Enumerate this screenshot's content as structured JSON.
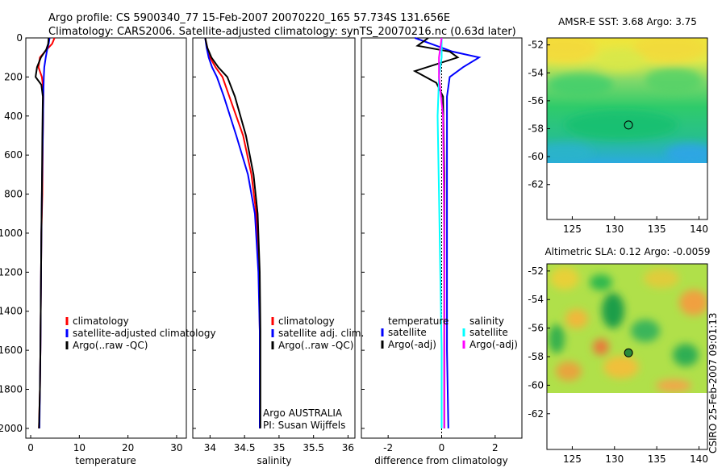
{
  "title_line1": "Argo profile: CS 5900340_77 15-Feb-2007 20070220_165 57.734S 131.656E",
  "title_line2": "Climatology: CARS2006. Satellite-adjusted climatology: synTS_20070216.nc (0.63d later)",
  "watermark": "CSIRO 25-Feb-2007 09:01:13",
  "colors": {
    "red": "#ff0000",
    "blue": "#0000ff",
    "black": "#000000",
    "cyan": "#00ffff",
    "magenta": "#ff00ff"
  },
  "chart_data": [
    {
      "type": "line",
      "name": "temperature",
      "xlabel": "temperature",
      "xlim": [
        -1,
        32
      ],
      "ylim": [
        2050,
        0
      ],
      "xticks": [
        0,
        10,
        20,
        30
      ],
      "yticks": [
        0,
        200,
        400,
        600,
        800,
        1000,
        1200,
        1400,
        1600,
        1800,
        2000
      ],
      "legend": [
        "climatology",
        "satellite-adjusted climatology",
        "Argo(..raw -QC)"
      ],
      "series": [
        {
          "name": "climatology",
          "color": "red",
          "x": [
            4.9,
            4.4,
            3.3,
            1.9,
            1.6,
            2.3,
            2.6,
            2.6,
            2.5,
            2.4,
            2.2,
            2.1,
            2.0,
            1.9,
            1.7
          ],
          "y": [
            0,
            30,
            60,
            100,
            150,
            200,
            260,
            300,
            500,
            800,
            1000,
            1300,
            1600,
            1800,
            2000
          ]
        },
        {
          "name": "satellite-adjusted climatology",
          "color": "blue",
          "x": [
            3.9,
            3.7,
            3.4,
            3.1,
            2.8,
            2.7,
            2.6,
            2.5,
            2.3,
            2.2,
            2.1,
            2.0,
            1.8
          ],
          "y": [
            0,
            30,
            60,
            100,
            150,
            200,
            300,
            500,
            800,
            1000,
            1300,
            1600,
            2000
          ]
        },
        {
          "name": "Argo(..raw -QC)",
          "color": "black",
          "x": [
            3.7,
            3.6,
            3.2,
            2.1,
            1.3,
            1.0,
            2.2,
            2.5,
            2.4,
            2.3,
            2.2,
            2.1,
            2.0,
            1.9,
            1.7
          ],
          "y": [
            0,
            30,
            60,
            100,
            150,
            200,
            240,
            300,
            500,
            800,
            1000,
            1300,
            1600,
            1800,
            2000
          ]
        }
      ]
    },
    {
      "type": "line",
      "name": "salinity",
      "xlabel": "salinity",
      "xlim": [
        33.75,
        36.1
      ],
      "ylim": [
        2050,
        0
      ],
      "xticks": [
        34,
        34.5,
        35,
        35.5,
        36
      ],
      "legend": [
        "climatology",
        "satellite adj. clim.",
        "Argo(..raw -QC)"
      ],
      "annotation": [
        "Argo AUSTRALIA",
        "PI: Susan Wijffels"
      ],
      "series": [
        {
          "name": "climatology",
          "color": "red",
          "x": [
            33.93,
            33.96,
            34.0,
            34.08,
            34.18,
            34.28,
            34.48,
            34.6,
            34.67,
            34.71,
            34.72,
            34.72,
            34.72
          ],
          "y": [
            0,
            50,
            100,
            150,
            200,
            300,
            500,
            700,
            900,
            1200,
            1500,
            1800,
            2000
          ]
        },
        {
          "name": "satellite adj. clim.",
          "color": "blue",
          "x": [
            33.93,
            33.95,
            33.98,
            34.03,
            34.1,
            34.2,
            34.38,
            34.55,
            34.65,
            34.7,
            34.72,
            34.72,
            34.72
          ],
          "y": [
            0,
            50,
            100,
            150,
            200,
            300,
            500,
            700,
            900,
            1200,
            1500,
            1800,
            2000
          ]
        },
        {
          "name": "Argo(..raw -QC)",
          "color": "black",
          "x": [
            33.93,
            33.96,
            34.02,
            34.12,
            34.25,
            34.36,
            34.52,
            34.63,
            34.69,
            34.72,
            34.73,
            34.73,
            34.73
          ],
          "y": [
            0,
            50,
            100,
            150,
            200,
            300,
            500,
            700,
            900,
            1200,
            1500,
            1800,
            2000
          ]
        }
      ]
    },
    {
      "type": "line",
      "name": "difference from climatology",
      "xlabel": "difference from climatology",
      "xlim": [
        -3,
        3
      ],
      "ylim": [
        2050,
        0
      ],
      "xticks": [
        -2,
        0,
        2
      ],
      "legend_temperature_header": "temperature",
      "legend_salinity_header": "salinity",
      "legend": [
        "satellite",
        "Argo(-adj)",
        "satellite",
        "Argo(-adj)"
      ],
      "series": [
        {
          "name": "temperature satellite",
          "color": "blue",
          "x": [
            -1.0,
            -0.2,
            0.4,
            1.4,
            0.8,
            0.3,
            0.2,
            0.2,
            0.2,
            0.2,
            0.25
          ],
          "y": [
            0,
            40,
            70,
            100,
            150,
            200,
            300,
            700,
            1200,
            1600,
            2000
          ]
        },
        {
          "name": "temperature Argo(-adj)",
          "color": "black",
          "x": [
            -0.5,
            -0.9,
            0.3,
            0.6,
            -1.0,
            -0.2,
            0.05,
            0.1,
            0.1,
            0.1,
            0.1
          ],
          "y": [
            0,
            40,
            70,
            100,
            170,
            230,
            300,
            700,
            1200,
            1600,
            2000
          ]
        },
        {
          "name": "salinity satellite",
          "color": "cyan",
          "x": [
            0.0,
            0.0,
            -0.1,
            -0.15,
            -0.1,
            -0.05,
            0.0,
            0.0
          ],
          "y": [
            0,
            100,
            200,
            400,
            800,
            1200,
            1600,
            2000
          ]
        },
        {
          "name": "salinity Argo(-adj)",
          "color": "magenta",
          "x": [
            0.0,
            -0.1,
            -0.1,
            0.05,
            0.08,
            0.1,
            0.1,
            0.1
          ],
          "y": [
            0,
            100,
            200,
            400,
            800,
            1200,
            1600,
            2000
          ]
        }
      ]
    },
    {
      "type": "heatmap",
      "name": "AMSR-E SST",
      "title": "AMSR-E SST: 3.68 Argo: 3.75",
      "xlim": [
        122,
        141
      ],
      "ylim": [
        -64.5,
        -51.5
      ],
      "xticks": [
        125,
        130,
        135,
        140
      ],
      "yticks": [
        -52,
        -54,
        -56,
        -58,
        -60,
        -62
      ],
      "data_lat_range": [
        -60,
        -51.5
      ],
      "marker": {
        "lon": 131.656,
        "lat": -57.734
      }
    },
    {
      "type": "heatmap",
      "name": "Altimetric SLA",
      "title": "Altimetric SLA: 0.12 Argo: -0.0059",
      "xlim": [
        122,
        141
      ],
      "ylim": [
        -64.5,
        -51.5
      ],
      "xticks": [
        125,
        130,
        135,
        140
      ],
      "yticks": [
        -52,
        -54,
        -56,
        -58,
        -60,
        -62
      ],
      "data_lat_range": [
        -60,
        -51.5
      ],
      "marker": {
        "lon": 131.656,
        "lat": -57.734
      }
    }
  ]
}
